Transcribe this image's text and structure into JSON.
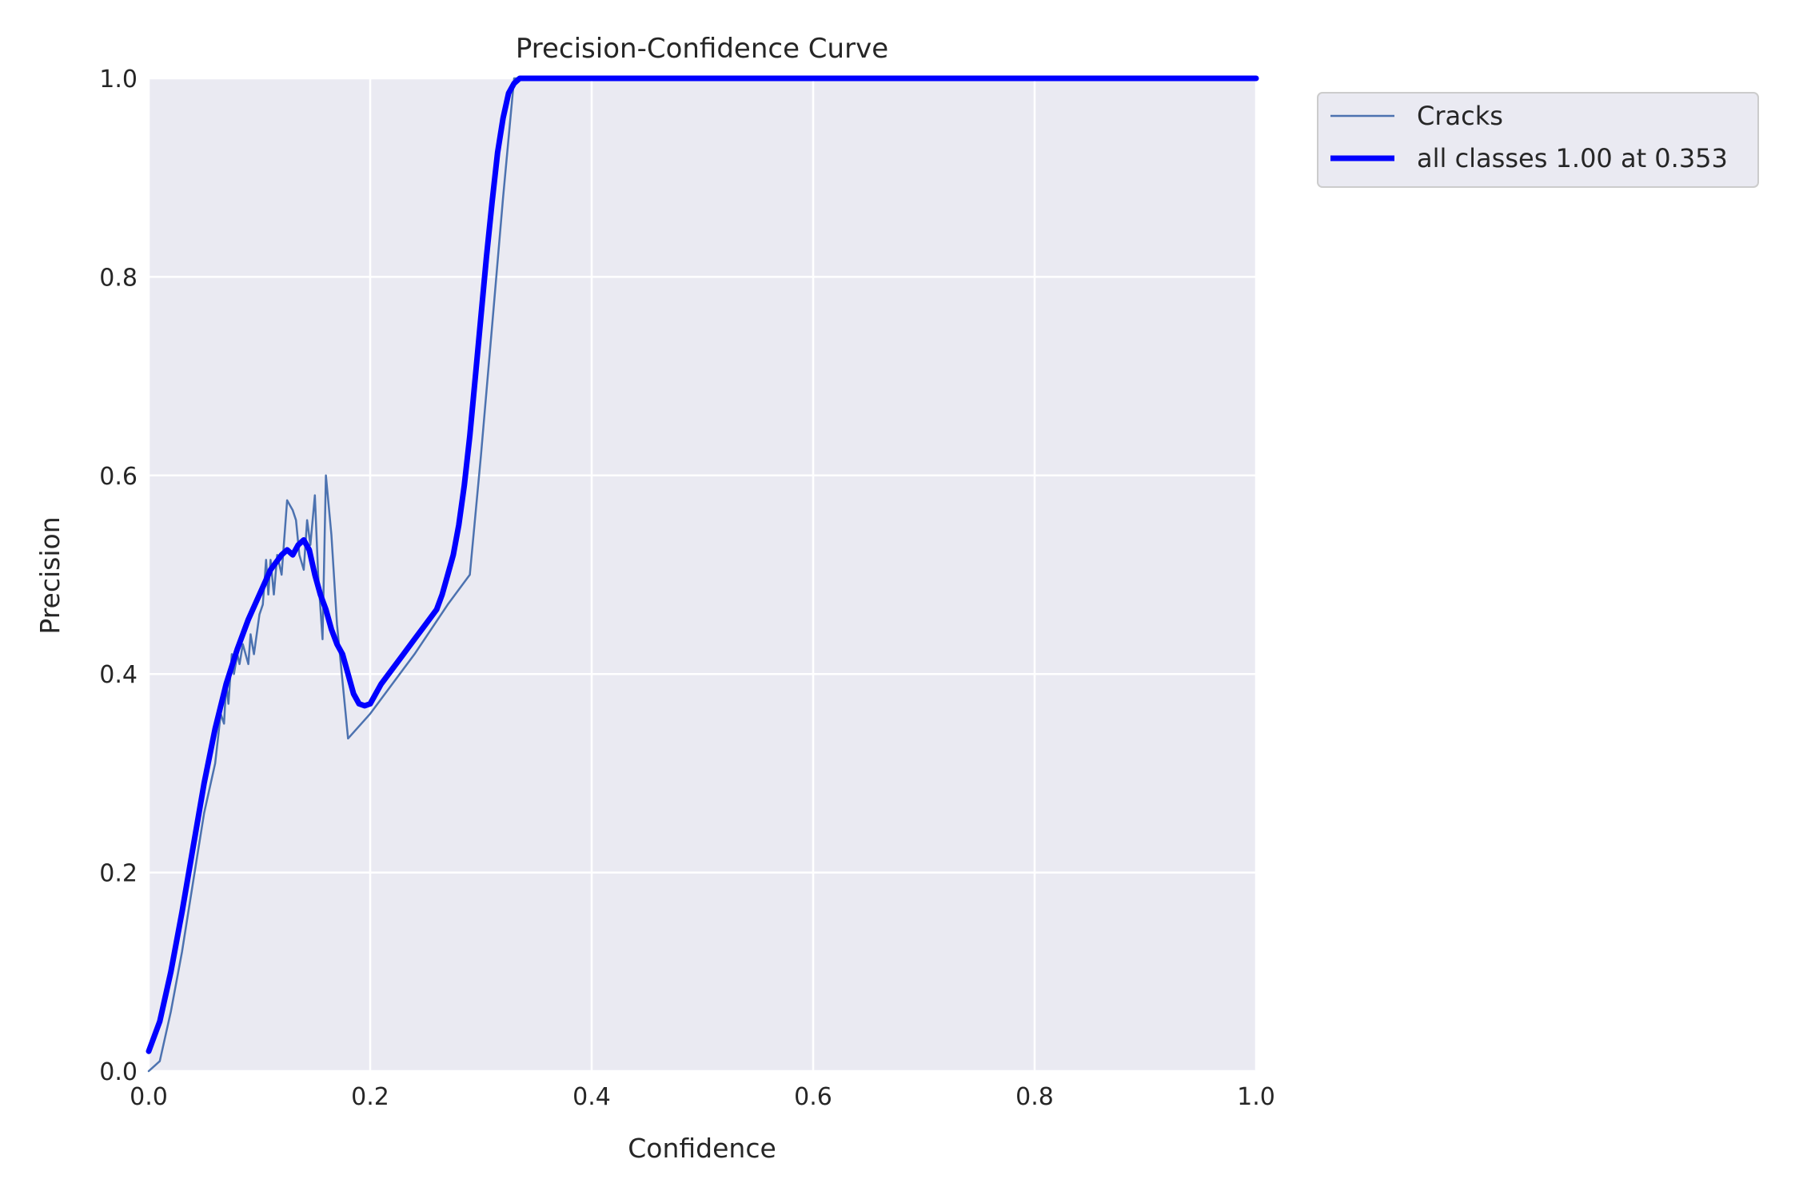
{
  "chart_data": {
    "type": "line",
    "title": "Precision-Confidence Curve",
    "xlabel": "Confidence",
    "ylabel": "Precision",
    "xlim": [
      0,
      1
    ],
    "ylim": [
      0,
      1
    ],
    "xticks": [
      0.0,
      0.2,
      0.4,
      0.6,
      0.8,
      1.0
    ],
    "yticks": [
      0.0,
      0.2,
      0.4,
      0.6,
      0.8,
      1.0
    ],
    "xtick_labels": [
      "0.0",
      "0.2",
      "0.4",
      "0.6",
      "0.8",
      "1.0"
    ],
    "ytick_labels": [
      "0.0",
      "0.2",
      "0.4",
      "0.6",
      "0.8",
      "1.0"
    ],
    "grid": true,
    "legend_position": "outside-top-right",
    "background_color": "#eaeaf2",
    "series": [
      {
        "name": "Cracks",
        "color": "#4c72b0",
        "style": "thin",
        "x": [
          0.0,
          0.005,
          0.01,
          0.02,
          0.03,
          0.04,
          0.05,
          0.06,
          0.063,
          0.065,
          0.068,
          0.07,
          0.072,
          0.075,
          0.077,
          0.08,
          0.082,
          0.085,
          0.09,
          0.092,
          0.095,
          0.1,
          0.103,
          0.106,
          0.108,
          0.11,
          0.113,
          0.116,
          0.12,
          0.125,
          0.13,
          0.133,
          0.136,
          0.14,
          0.143,
          0.146,
          0.15,
          0.153,
          0.157,
          0.16,
          0.165,
          0.17,
          0.18,
          0.2,
          0.22,
          0.24,
          0.27,
          0.29,
          0.3,
          0.31,
          0.32,
          0.33,
          0.35,
          0.4,
          0.5,
          0.6,
          0.7,
          0.8,
          0.9,
          1.0
        ],
        "y": [
          0.0,
          0.005,
          0.01,
          0.06,
          0.12,
          0.19,
          0.26,
          0.31,
          0.34,
          0.36,
          0.35,
          0.39,
          0.37,
          0.42,
          0.4,
          0.42,
          0.41,
          0.43,
          0.41,
          0.44,
          0.42,
          0.46,
          0.47,
          0.515,
          0.48,
          0.515,
          0.48,
          0.52,
          0.5,
          0.575,
          0.565,
          0.555,
          0.52,
          0.505,
          0.555,
          0.53,
          0.58,
          0.5,
          0.435,
          0.6,
          0.54,
          0.45,
          0.335,
          0.36,
          0.39,
          0.42,
          0.47,
          0.5,
          0.62,
          0.75,
          0.88,
          1.0,
          1.0,
          1.0,
          1.0,
          1.0,
          1.0,
          1.0,
          1.0,
          1.0
        ]
      },
      {
        "name": "all classes 1.00 at 0.353",
        "color": "#0000ff",
        "style": "thick",
        "x": [
          0.0,
          0.01,
          0.02,
          0.03,
          0.04,
          0.05,
          0.06,
          0.07,
          0.08,
          0.09,
          0.1,
          0.11,
          0.12,
          0.125,
          0.13,
          0.135,
          0.14,
          0.145,
          0.15,
          0.155,
          0.16,
          0.165,
          0.17,
          0.175,
          0.18,
          0.185,
          0.19,
          0.195,
          0.2,
          0.205,
          0.21,
          0.22,
          0.23,
          0.24,
          0.25,
          0.26,
          0.265,
          0.27,
          0.275,
          0.28,
          0.285,
          0.29,
          0.295,
          0.3,
          0.305,
          0.31,
          0.315,
          0.32,
          0.325,
          0.33,
          0.335,
          0.34,
          0.345,
          0.35,
          0.353,
          0.36,
          0.4,
          0.5,
          0.6,
          0.7,
          0.8,
          0.9,
          1.0
        ],
        "y": [
          0.02,
          0.05,
          0.1,
          0.16,
          0.225,
          0.29,
          0.345,
          0.39,
          0.425,
          0.455,
          0.48,
          0.505,
          0.52,
          0.525,
          0.52,
          0.53,
          0.535,
          0.525,
          0.5,
          0.48,
          0.465,
          0.445,
          0.43,
          0.42,
          0.4,
          0.38,
          0.37,
          0.368,
          0.37,
          0.38,
          0.39,
          0.405,
          0.42,
          0.435,
          0.45,
          0.465,
          0.48,
          0.5,
          0.52,
          0.55,
          0.59,
          0.64,
          0.7,
          0.76,
          0.82,
          0.875,
          0.925,
          0.96,
          0.985,
          0.995,
          1.0,
          1.0,
          1.0,
          1.0,
          1.0,
          1.0,
          1.0,
          1.0,
          1.0,
          1.0,
          1.0,
          1.0,
          1.0
        ]
      }
    ]
  }
}
